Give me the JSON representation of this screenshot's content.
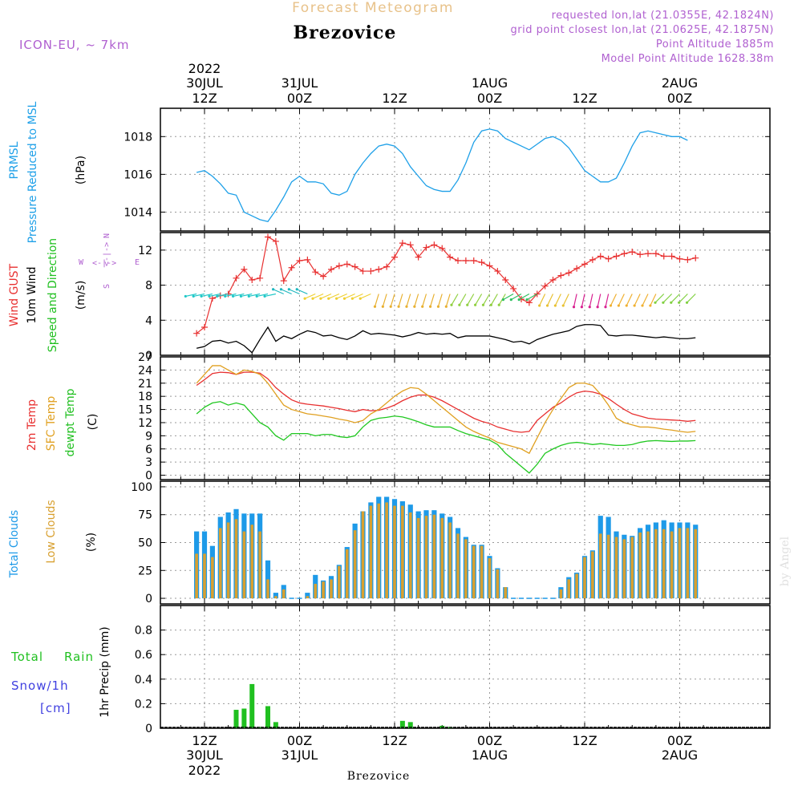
{
  "header": {
    "title": "Forecast Meteogram",
    "location": "Brezovice",
    "model": "ICON-EU, ~ 7km",
    "requested": "requested lon,lat (21.0355E, 42.1824N)",
    "gridpoint": "grid point closest lon,lat (21.0625E, 42.1875N)",
    "point_alt": "Point Altitude 1885m",
    "model_alt": "Model Point Altitude 1628.38m",
    "footer_location": "Brezovice",
    "watermark": "by Angel"
  },
  "time_axis": {
    "top": [
      {
        "line1": "2022",
        "line2": "30JUL",
        "line3": "12Z"
      },
      {
        "line1": "",
        "line2": "31JUL",
        "line3": "00Z"
      },
      {
        "line1": "",
        "line2": "",
        "line3": "12Z"
      },
      {
        "line1": "",
        "line2": "1AUG",
        "line3": "00Z"
      },
      {
        "line1": "",
        "line2": "",
        "line3": "12Z"
      },
      {
        "line1": "",
        "line2": "2AUG",
        "line3": "00Z"
      }
    ],
    "bottom": [
      {
        "line1": "12Z",
        "line2": "30JUL",
        "line3": "2022"
      },
      {
        "line1": "00Z",
        "line2": "31JUL",
        "line3": ""
      },
      {
        "line1": "12Z",
        "line2": "",
        "line3": ""
      },
      {
        "line1": "00Z",
        "line2": "1AUG",
        "line3": ""
      },
      {
        "line1": "12Z",
        "line2": "",
        "line3": ""
      },
      {
        "line1": "00Z",
        "line2": "2AUG",
        "line3": ""
      }
    ]
  },
  "panel_labels": {
    "pressure": {
      "a": "PRMSL",
      "b": "Pressure Reduced to MSL",
      "unit": "(hPa)"
    },
    "wind": {
      "a": "Wind GUST",
      "b": "10m Wind",
      "c": "Speed and Direction",
      "unit": "(m/s)",
      "compass": {
        "n": "N",
        "s": "S",
        "w": "W",
        "e": "E"
      }
    },
    "temp": {
      "a": "2m Temp",
      "b": "SFC Temp",
      "c": "dewpt Temp",
      "unit": "(C)"
    },
    "cloud": {
      "a": "Total Clouds",
      "b": "Low Clouds",
      "unit": "(%)"
    },
    "precip": {
      "a": "Total",
      "a2": "Rain",
      "b": "Snow/1h",
      "c": "[cm]",
      "unit": "1hr Precip (mm)"
    }
  },
  "colors": {
    "frame": "#000000",
    "grid": "#888888",
    "title": "#e8c28a",
    "meta": "#b060d0",
    "pressure": "#1ea0e8",
    "gust": "#e83030",
    "wind": "#000000",
    "sfc_temp": "#e0a020",
    "dewpt": "#20c820",
    "total_cloud": "#1e9ae8",
    "low_cloud": "#d8a030",
    "rain": "#20c020",
    "snow": "#4040e0"
  },
  "chart_data": [
    {
      "type": "line",
      "name": "pressure",
      "ylim": [
        1013,
        1019.5
      ],
      "yticks": [
        1014,
        1016,
        1018
      ],
      "x_hours": [
        -1,
        0,
        1,
        2,
        3,
        4,
        5,
        6,
        7,
        8,
        9,
        10,
        11,
        12,
        13,
        14,
        15,
        16,
        17,
        18,
        19,
        20,
        21,
        22,
        23,
        24,
        25,
        26,
        27,
        28,
        29,
        30,
        31,
        32,
        33,
        34,
        35,
        36,
        37,
        38,
        39,
        40,
        41,
        42,
        43,
        44,
        45,
        46,
        47,
        48,
        49,
        50,
        51,
        52,
        53,
        54,
        55,
        56,
        57,
        58,
        59,
        60,
        61,
        62
      ],
      "series": [
        {
          "values": [
            1016.1,
            1016.2,
            1015.9,
            1015.5,
            1015.0,
            1014.9,
            1014.0,
            1013.8,
            1013.6,
            1013.5,
            1014.1,
            1014.8,
            1015.6,
            1015.9,
            1015.6,
            1015.6,
            1015.5,
            1015.0,
            1014.9,
            1015.1,
            1016.0,
            1016.6,
            1017.1,
            1017.5,
            1017.6,
            1017.5,
            1017.1,
            1016.4,
            1015.9,
            1015.4,
            1015.2,
            1015.1,
            1015.1,
            1015.7,
            1016.6,
            1017.7,
            1018.3,
            1018.4,
            1018.3,
            1017.9,
            1017.7,
            1017.5,
            1017.3,
            1017.6,
            1017.9,
            1018.0,
            1017.8,
            1017.4,
            1016.8,
            1016.2,
            1015.9,
            1015.6,
            1015.6,
            1015.8,
            1016.6,
            1017.5,
            1018.2,
            1018.3,
            1018.2,
            1018.1,
            1018.0,
            1018.0,
            1017.8
          ]
        }
      ]
    },
    {
      "type": "line",
      "name": "wind",
      "ylim": [
        0,
        14
      ],
      "yticks": [
        0,
        4,
        8,
        12
      ],
      "x_hours": [
        -1,
        0,
        1,
        2,
        3,
        4,
        5,
        6,
        7,
        8,
        9,
        10,
        11,
        12,
        13,
        14,
        15,
        16,
        17,
        18,
        19,
        20,
        21,
        22,
        23,
        24,
        25,
        26,
        27,
        28,
        29,
        30,
        31,
        32,
        33,
        34,
        35,
        36,
        37,
        38,
        39,
        40,
        41,
        42,
        43,
        44,
        45,
        46,
        47,
        48,
        49,
        50,
        51,
        52,
        53,
        54,
        55,
        56,
        57,
        58,
        59,
        60,
        61,
        62
      ],
      "series": [
        {
          "name": "Wind GUST",
          "values": [
            2.5,
            3.2,
            6.5,
            6.8,
            7.0,
            8.8,
            9.8,
            8.6,
            8.8,
            13.5,
            13.0,
            8.5,
            10.0,
            10.8,
            10.9,
            9.5,
            9.0,
            9.8,
            10.2,
            10.4,
            10.1,
            9.6,
            9.6,
            9.8,
            10.1,
            11.2,
            12.8,
            12.6,
            11.2,
            12.3,
            12.6,
            12.2,
            11.2,
            10.8,
            10.8,
            10.8,
            10.6,
            10.2,
            9.6,
            8.6,
            7.6,
            6.4,
            6.0,
            7.0,
            7.9,
            8.6,
            9.1,
            9.4,
            9.9,
            10.4,
            10.9,
            11.3,
            11.0,
            11.3,
            11.6,
            11.8,
            11.5,
            11.6,
            11.6,
            11.3,
            11.3,
            11.0,
            10.9,
            11.1
          ]
        },
        {
          "name": "10m Wind",
          "values": [
            0.8,
            1.0,
            1.6,
            1.7,
            1.4,
            1.6,
            1.1,
            0.3,
            1.8,
            3.2,
            1.6,
            2.2,
            1.9,
            2.4,
            2.8,
            2.6,
            2.2,
            2.3,
            2.0,
            1.8,
            2.2,
            2.8,
            2.4,
            2.5,
            2.4,
            2.3,
            2.1,
            2.3,
            2.6,
            2.4,
            2.5,
            2.4,
            2.5,
            2.0,
            2.2,
            2.2,
            2.2,
            2.2,
            2.0,
            1.8,
            1.5,
            1.6,
            1.3,
            1.8,
            2.1,
            2.4,
            2.6,
            2.8,
            3.3,
            3.5,
            3.5,
            3.4,
            2.3,
            2.2,
            2.3,
            2.3,
            2.2,
            2.1,
            2.0,
            2.1,
            2.0,
            1.9,
            1.9,
            2.0
          ]
        }
      ]
    },
    {
      "type": "line",
      "name": "temperature",
      "ylim": [
        -1,
        27
      ],
      "yticks": [
        0,
        3,
        6,
        9,
        12,
        15,
        18,
        21,
        24,
        27
      ],
      "x_hours": [
        -1,
        0,
        1,
        2,
        3,
        4,
        5,
        6,
        7,
        8,
        9,
        10,
        11,
        12,
        13,
        14,
        15,
        16,
        17,
        18,
        19,
        20,
        21,
        22,
        23,
        24,
        25,
        26,
        27,
        28,
        29,
        30,
        31,
        32,
        33,
        34,
        35,
        36,
        37,
        38,
        39,
        40,
        41,
        42,
        43,
        44,
        45,
        46,
        47,
        48,
        49,
        50,
        51,
        52,
        53,
        54,
        55,
        56,
        57,
        58,
        59,
        60,
        61,
        62
      ],
      "series": [
        {
          "name": "2m Temp",
          "values": [
            20.5,
            21.8,
            23.2,
            23.5,
            23.4,
            23.0,
            23.5,
            23.5,
            23.3,
            22.0,
            20.0,
            18.5,
            17.2,
            16.5,
            16.2,
            16.0,
            15.8,
            15.5,
            15.2,
            14.8,
            14.5,
            15.0,
            14.7,
            14.8,
            15.3,
            16.0,
            17.0,
            17.8,
            18.3,
            18.3,
            17.8,
            17.0,
            16.0,
            15.0,
            14.0,
            13.0,
            12.3,
            11.8,
            11.0,
            10.5,
            10.0,
            9.8,
            10.0,
            12.5,
            14.0,
            15.5,
            16.5,
            17.8,
            18.8,
            19.2,
            19.0,
            18.5,
            17.5,
            16.2,
            15.0,
            14.0,
            13.5,
            13.0,
            12.8,
            12.7,
            12.6,
            12.5,
            12.3,
            12.5
          ]
        },
        {
          "name": "SFC Temp",
          "values": [
            21.0,
            23.0,
            25.0,
            25.0,
            24.0,
            23.0,
            24.0,
            23.7,
            23.0,
            21.0,
            18.5,
            16.0,
            15.0,
            14.5,
            14.0,
            13.8,
            13.5,
            13.2,
            12.8,
            12.5,
            12.0,
            12.5,
            14.0,
            15.0,
            16.5,
            18.0,
            19.2,
            20.0,
            19.8,
            18.5,
            17.0,
            15.5,
            14.0,
            12.5,
            11.0,
            10.0,
            9.2,
            8.5,
            7.5,
            7.0,
            6.5,
            6.0,
            5.0,
            8.5,
            12.0,
            15.0,
            17.5,
            20.0,
            21.0,
            21.0,
            20.5,
            18.5,
            16.0,
            13.0,
            12.0,
            11.5,
            11.0,
            11.0,
            10.8,
            10.5,
            10.3,
            10.0,
            9.8,
            10.0
          ]
        },
        {
          "name": "dewpt Temp",
          "values": [
            14.0,
            15.5,
            16.5,
            16.8,
            16.0,
            16.5,
            16.0,
            14.0,
            12.0,
            11.0,
            9.0,
            8.0,
            9.5,
            9.5,
            9.5,
            9.0,
            9.3,
            9.3,
            8.8,
            8.6,
            9.0,
            11.0,
            12.5,
            13.0,
            13.2,
            13.5,
            13.3,
            12.8,
            12.2,
            11.5,
            11.0,
            11.0,
            11.0,
            10.2,
            9.5,
            9.0,
            8.5,
            8.0,
            7.0,
            5.0,
            3.5,
            2.0,
            0.5,
            2.5,
            5.0,
            6.0,
            6.8,
            7.3,
            7.5,
            7.3,
            7.0,
            7.2,
            7.0,
            6.8,
            6.8,
            7.0,
            7.5,
            7.8,
            7.9,
            7.8,
            7.7,
            7.8,
            7.8,
            7.9
          ]
        }
      ]
    },
    {
      "type": "bar",
      "name": "clouds",
      "ylim": [
        -5,
        105
      ],
      "yticks": [
        0,
        25,
        50,
        75,
        100
      ],
      "x_hours": [
        -1,
        0,
        1,
        2,
        3,
        4,
        5,
        6,
        7,
        8,
        9,
        10,
        11,
        12,
        13,
        14,
        15,
        16,
        17,
        18,
        19,
        20,
        21,
        22,
        23,
        24,
        25,
        26,
        27,
        28,
        29,
        30,
        31,
        32,
        33,
        34,
        35,
        36,
        37,
        38,
        39,
        40,
        41,
        42,
        43,
        44,
        45,
        46,
        47,
        48,
        49,
        50,
        51,
        52,
        53,
        54,
        55,
        56,
        57,
        58,
        59,
        60,
        61,
        62
      ],
      "series": [
        {
          "name": "Total Clouds",
          "values": [
            60,
            60,
            47,
            73,
            77,
            80,
            76,
            76,
            76,
            34,
            5,
            12,
            0,
            0,
            5,
            21,
            16,
            20,
            30,
            46,
            67,
            78,
            86,
            91,
            91,
            89,
            87,
            84,
            78,
            79,
            79,
            76,
            73,
            63,
            55,
            48,
            48,
            38,
            27,
            10,
            0,
            0,
            0,
            0,
            0,
            0,
            10,
            19,
            23,
            38,
            43,
            74,
            73,
            60,
            57,
            56,
            63,
            66,
            68,
            70,
            68,
            68,
            68,
            66
          ]
        },
        {
          "name": "Low Clouds",
          "values": [
            40,
            40,
            37,
            63,
            68,
            71,
            60,
            66,
            60,
            17,
            2,
            8,
            0,
            0,
            2,
            13,
            15,
            17,
            29,
            44,
            61,
            78,
            83,
            85,
            86,
            83,
            83,
            77,
            72,
            74,
            75,
            72,
            68,
            58,
            53,
            47,
            47,
            36,
            26,
            10,
            0,
            0,
            0,
            0,
            0,
            0,
            8,
            17,
            22,
            37,
            42,
            58,
            57,
            55,
            53,
            55,
            59,
            60,
            62,
            62,
            60,
            63,
            63,
            62
          ]
        }
      ]
    },
    {
      "type": "bar",
      "name": "precipitation",
      "ylim": [
        0,
        1.0
      ],
      "yticks": [
        0,
        0.2,
        0.4,
        0.6,
        0.8
      ],
      "x_hours": [
        4,
        5,
        6,
        7,
        8,
        9,
        25,
        26,
        30,
        31
      ],
      "series": [
        {
          "name": "Total Rain",
          "values": [
            0.15,
            0.16,
            0.36,
            0.01,
            0.18,
            0.05,
            0.06,
            0.05,
            0.02,
            0.01
          ]
        }
      ]
    }
  ]
}
